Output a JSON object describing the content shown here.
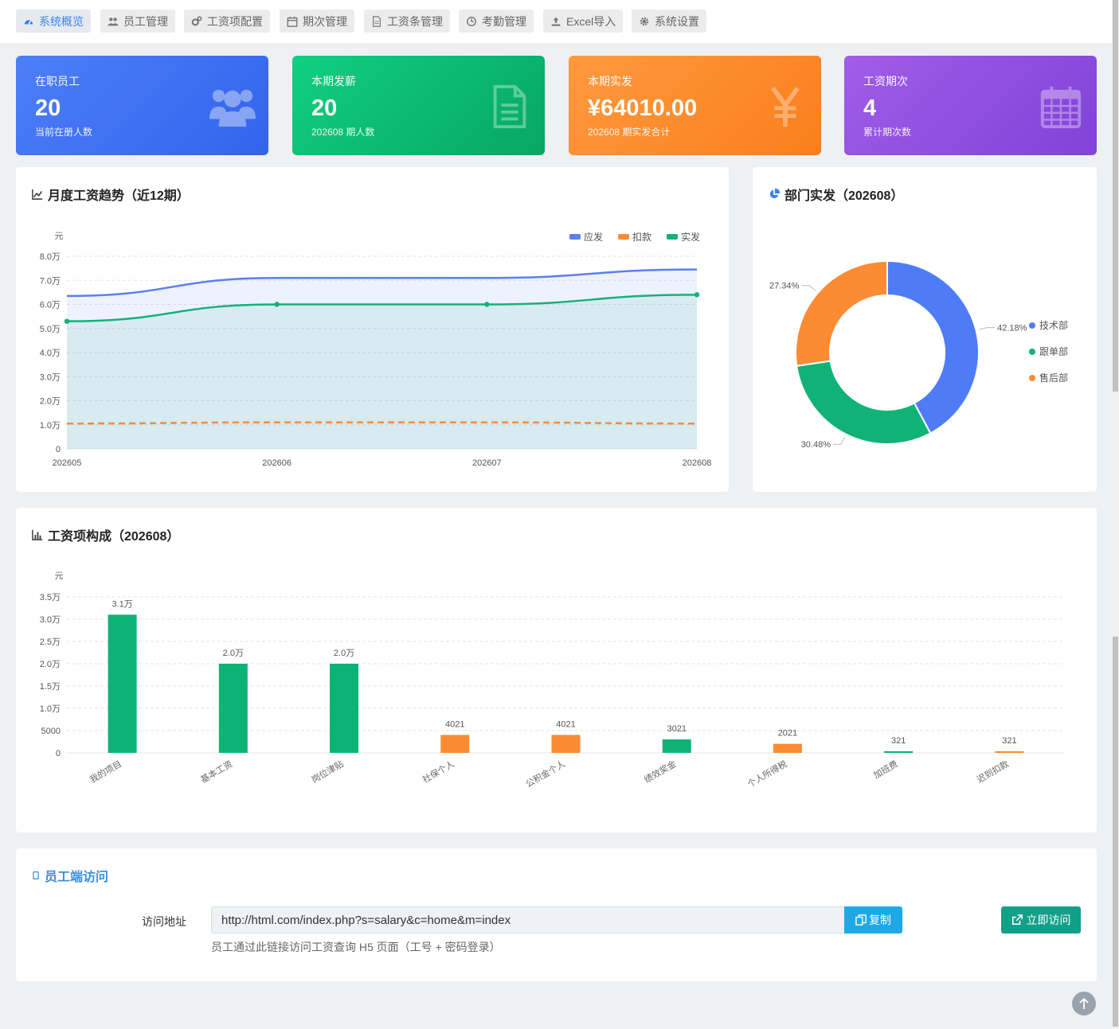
{
  "nav": [
    {
      "label": "系统概览",
      "icon": "dashboard-icon",
      "active": true
    },
    {
      "label": "员工管理",
      "icon": "users-icon"
    },
    {
      "label": "工资项配置",
      "icon": "cogs-icon"
    },
    {
      "label": "期次管理",
      "icon": "calendar-icon"
    },
    {
      "label": "工资条管理",
      "icon": "file-icon"
    },
    {
      "label": "考勤管理",
      "icon": "clock-icon"
    },
    {
      "label": "Excel导入",
      "icon": "upload-icon"
    },
    {
      "label": "系统设置",
      "icon": "gear-icon"
    }
  ],
  "cards": [
    {
      "label": "在职员工",
      "value": "20",
      "sub": "当前在册人数",
      "icon": "users-icon",
      "color": "#4a7bf7"
    },
    {
      "label": "本期发薪",
      "value": "20",
      "sub": "202608 期人数",
      "icon": "document-icon",
      "color": "#10c27a"
    },
    {
      "label": "本期实发",
      "value": "¥64010.00",
      "sub": "202608 期实发合计",
      "icon": "yen-icon",
      "color": "#fd8c2b"
    },
    {
      "label": "工资期次",
      "value": "4",
      "sub": "累计期次数",
      "icon": "calendar-icon",
      "color": "#9b55e0"
    }
  ],
  "trend": {
    "title": "月度工资趋势（近12期）",
    "chart_data": {
      "type": "line",
      "x": [
        "202605",
        "202606",
        "202607",
        "202608"
      ],
      "yunit": "元",
      "ylim": [
        0,
        80000
      ],
      "yticks": [
        "0",
        "1.0万",
        "2.0万",
        "3.0万",
        "4.0万",
        "5.0万",
        "6.0万",
        "7.0万",
        "8.0万"
      ],
      "legend_position": "top-right",
      "series": [
        {
          "name": "应发",
          "color": "#5b7ff2",
          "values": [
            63500,
            71000,
            71000,
            74500
          ]
        },
        {
          "name": "扣款",
          "color": "#fb8b35",
          "values": [
            10500,
            11000,
            11000,
            10500
          ]
        },
        {
          "name": "实发",
          "color": "#16b079",
          "values": [
            53000,
            60000,
            60000,
            64010
          ]
        }
      ]
    }
  },
  "dept": {
    "title": "部门实发（202608）",
    "chart_data": {
      "type": "pie",
      "legend_position": "right",
      "slices": [
        {
          "name": "技术部",
          "value": 42.18,
          "label": "42.18%",
          "color": "#4e7cf7"
        },
        {
          "name": "跟单部",
          "value": 30.48,
          "label": "30.48%",
          "color": "#10b277"
        },
        {
          "name": "售后部",
          "value": 27.34,
          "label": "27.34%",
          "color": "#fb8c33"
        }
      ]
    }
  },
  "compose": {
    "title": "工资项构成（202608）",
    "chart_data": {
      "type": "bar",
      "yunit": "元",
      "ylim": [
        0,
        35000
      ],
      "yticks": [
        "0",
        "5000",
        "1.0万",
        "1.5万",
        "2.0万",
        "2.5万",
        "3.0万",
        "3.5万"
      ],
      "categories": [
        "我的项目",
        "基本工资",
        "岗位津贴",
        "社保个人",
        "公积金个人",
        "绩效奖金",
        "个人所得税",
        "加班费",
        "迟到扣款"
      ],
      "values": [
        31000,
        20000,
        20000,
        4021,
        4021,
        3021,
        2021,
        321,
        321
      ],
      "labels": [
        "3.1万",
        "2.0万",
        "2.0万",
        "4021",
        "4021",
        "3021",
        "2021",
        "321",
        "321"
      ],
      "colors": [
        "#0db277",
        "#0db277",
        "#0db277",
        "#fb8c33",
        "#fb8c33",
        "#0db277",
        "#fb8c33",
        "#0db277",
        "#fb8c33"
      ]
    }
  },
  "access": {
    "title": "员工端访问",
    "url_label": "访问地址",
    "url": "http://html.com/index.php?s=salary&c=home&m=index",
    "copy_label": "复制",
    "visit_label": "立即访问",
    "hint": "员工通过此链接访问工资查询 H5 页面（工号 + 密码登录）"
  }
}
